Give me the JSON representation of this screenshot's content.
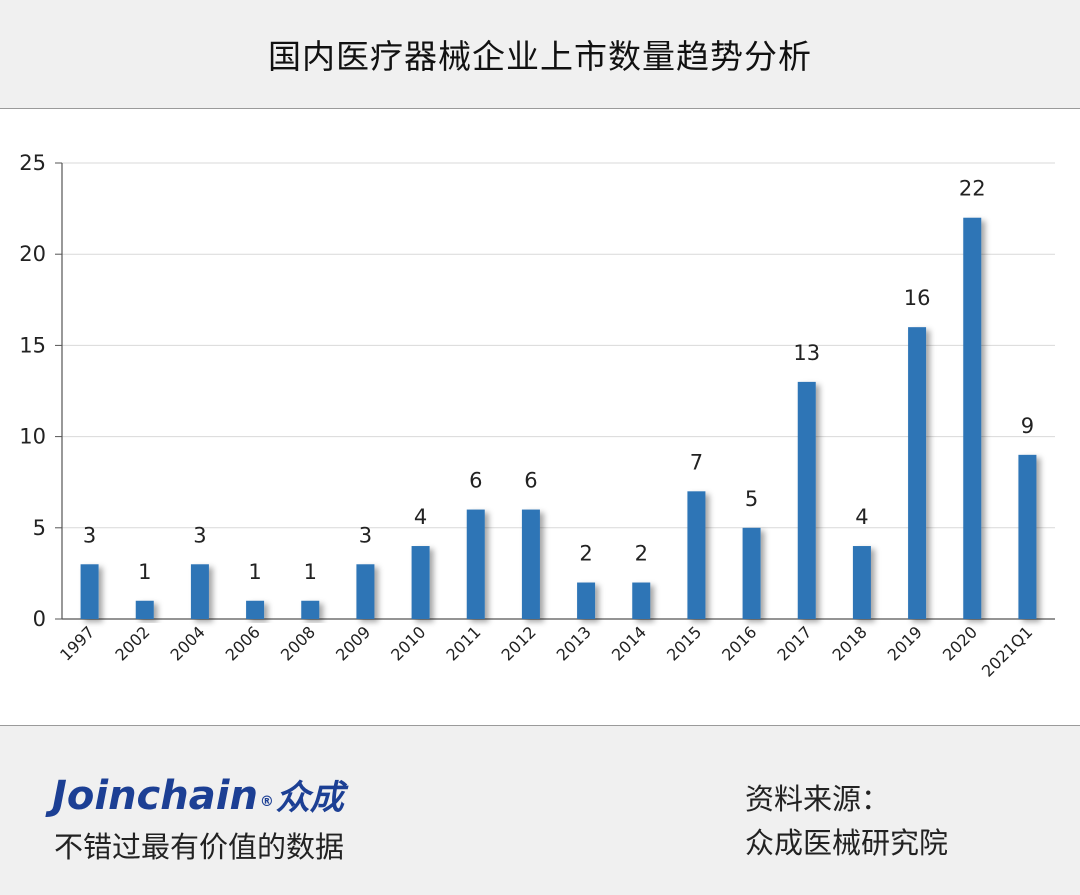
{
  "header": {
    "title": "国内医疗器械企业上市数量趋势分析"
  },
  "chart_data": {
    "type": "bar",
    "title": "",
    "xlabel": "",
    "ylabel": "",
    "ylim": [
      0,
      25
    ],
    "yticks": [
      0,
      5,
      10,
      15,
      20,
      25
    ],
    "grid": true,
    "legend": "none",
    "categories": [
      "1997",
      "2002",
      "2004",
      "2006",
      "2008",
      "2009",
      "2010",
      "2011",
      "2012",
      "2013",
      "2014",
      "2015",
      "2016",
      "2017",
      "2018",
      "2019",
      "2020",
      "2021Q1"
    ],
    "values": [
      3,
      1,
      3,
      1,
      1,
      3,
      4,
      6,
      6,
      2,
      2,
      7,
      5,
      13,
      4,
      16,
      22,
      9
    ],
    "bar_color": "#2e75b6"
  },
  "footer": {
    "brand_en": "Joinchain",
    "brand_cn": "众成",
    "brand_mark": "®",
    "slogan": "不错过最有价值的数据",
    "source_label": "资料来源：",
    "source_value": "众成医械研究院"
  }
}
